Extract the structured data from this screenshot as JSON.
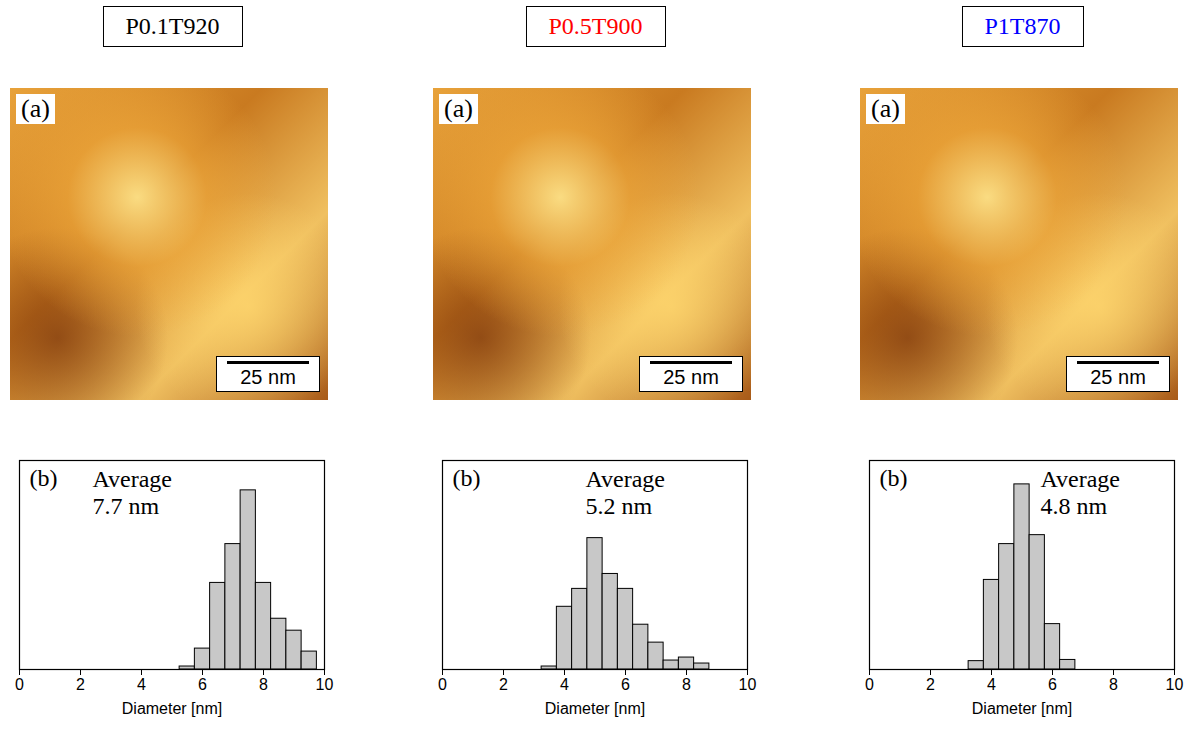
{
  "images": [
    {
      "title": "P0.1T920",
      "title_color": "#000000",
      "panel_label": "(a)",
      "scale_bar": "25 nm"
    },
    {
      "title": "P0.5T900",
      "title_color": "#ff0000",
      "panel_label": "(a)",
      "scale_bar": "25 nm"
    },
    {
      "title": "P1T870",
      "title_color": "#0000ff",
      "panel_label": "(a)",
      "scale_bar": "25 nm"
    }
  ],
  "chart_data": [
    {
      "type": "histogram",
      "panel_label": "(b)",
      "annotation": "Average 7.7 nm",
      "xlabel": "Diameter [nm]",
      "bins": [
        5.25,
        5.75,
        6.25,
        6.75,
        7.25,
        7.75,
        8.25,
        8.75,
        9.25,
        9.75
      ],
      "counts": [
        0.5,
        3.5,
        14.5,
        21,
        30,
        14.5,
        8.5,
        6.5,
        3
      ],
      "xlim": [
        0,
        10
      ],
      "xticks": [
        0,
        2,
        4,
        6,
        8,
        10
      ],
      "ylim": [
        0,
        35
      ],
      "tick_labels": "x",
      "color": "#c8c8c8"
    },
    {
      "type": "histogram",
      "panel_label": "(b)",
      "annotation": "Average 5.2 nm",
      "xlabel": "Diameter [nm]",
      "bins": [
        3.25,
        3.75,
        4.25,
        4.75,
        5.25,
        5.75,
        6.25,
        6.75,
        7.25,
        7.75,
        8.25,
        8.75
      ],
      "counts": [
        0.5,
        10.5,
        13.5,
        22,
        16,
        13.5,
        7.5,
        4.5,
        1.5,
        2,
        1
      ],
      "xlim": [
        0,
        10
      ],
      "xticks": [
        0,
        2,
        4,
        6,
        8,
        10
      ],
      "ylim": [
        0,
        35
      ],
      "tick_labels": "x",
      "color": "#c8c8c8"
    },
    {
      "type": "histogram",
      "panel_label": "(b)",
      "annotation": "Average 4.8 nm",
      "xlabel": "Diameter [nm]",
      "bins": [
        3.25,
        3.75,
        4.25,
        4.75,
        5.25,
        5.75,
        6.25,
        6.75
      ],
      "counts": [
        1.4,
        15,
        21,
        31,
        22.5,
        7.6,
        1.6
      ],
      "xlim": [
        0,
        10
      ],
      "xticks": [
        0,
        2,
        4,
        6,
        8,
        10
      ],
      "ylim": [
        0,
        35
      ],
      "tick_labels": "x",
      "color": "#c8c8c8"
    }
  ]
}
